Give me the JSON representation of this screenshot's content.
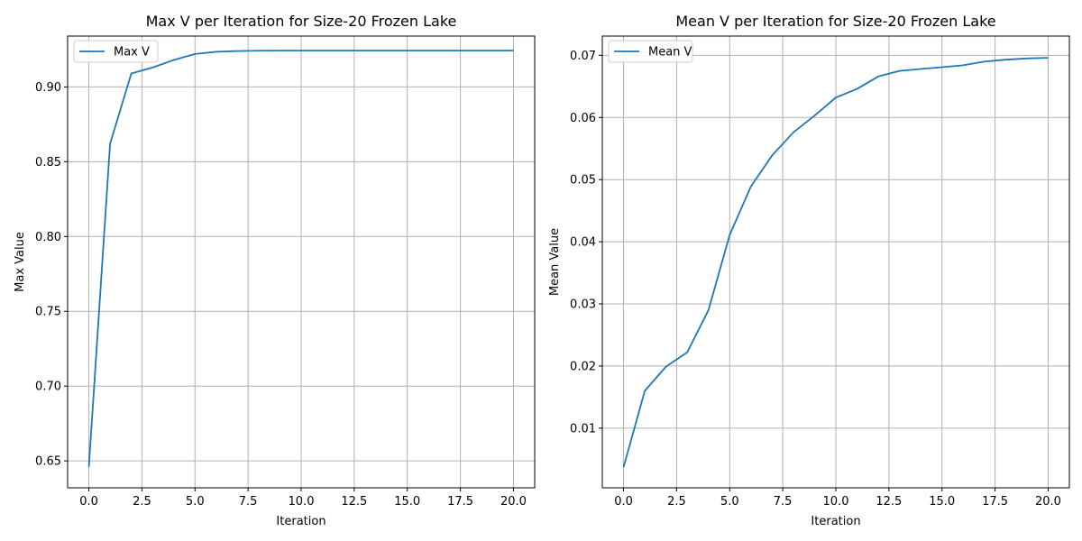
{
  "chart_data": [
    {
      "type": "line",
      "title": "Max V per Iteration for Size-20 Frozen Lake",
      "xlabel": "Iteration",
      "ylabel": "Max Value",
      "xlim": [
        -1,
        21
      ],
      "ylim": [
        0.632,
        0.934
      ],
      "xticks": [
        0.0,
        2.5,
        5.0,
        7.5,
        10.0,
        12.5,
        15.0,
        17.5,
        20.0
      ],
      "xtick_labels": [
        "0.0",
        "2.5",
        "5.0",
        "7.5",
        "10.0",
        "12.5",
        "15.0",
        "17.5",
        "20.0"
      ],
      "yticks": [
        0.65,
        0.7,
        0.75,
        0.8,
        0.85,
        0.9
      ],
      "ytick_labels": [
        "0.65",
        "0.70",
        "0.75",
        "0.80",
        "0.85",
        "0.90"
      ],
      "grid": true,
      "legend": "upper-left",
      "series": [
        {
          "name": "Max V",
          "color": "#1f77b4",
          "x": [
            0,
            1,
            2,
            3,
            4,
            5,
            6,
            7,
            8,
            9,
            10,
            11,
            12,
            13,
            14,
            15,
            16,
            17,
            18,
            19,
            20
          ],
          "y": [
            0.646,
            0.862,
            0.909,
            0.913,
            0.918,
            0.922,
            0.9235,
            0.924,
            0.9242,
            0.9243,
            0.9243,
            0.9243,
            0.9243,
            0.9243,
            0.9243,
            0.9243,
            0.9243,
            0.9243,
            0.9243,
            0.9243,
            0.9243
          ]
        }
      ]
    },
    {
      "type": "line",
      "title": "Mean V per Iteration for Size-20 Frozen Lake",
      "xlabel": "Iteration",
      "ylabel": "Mean Value",
      "xlim": [
        -1,
        21
      ],
      "ylim": [
        0.0004,
        0.0731
      ],
      "xticks": [
        0.0,
        2.5,
        5.0,
        7.5,
        10.0,
        12.5,
        15.0,
        17.5,
        20.0
      ],
      "xtick_labels": [
        "0.0",
        "2.5",
        "5.0",
        "7.5",
        "10.0",
        "12.5",
        "15.0",
        "17.5",
        "20.0"
      ],
      "yticks": [
        0.01,
        0.02,
        0.03,
        0.04,
        0.05,
        0.06,
        0.07
      ],
      "ytick_labels": [
        "0.01",
        "0.02",
        "0.03",
        "0.04",
        "0.05",
        "0.06",
        "0.07"
      ],
      "grid": true,
      "legend": "upper-left",
      "series": [
        {
          "name": "Mean V",
          "color": "#1f77b4",
          "x": [
            0,
            1,
            2,
            3,
            4,
            5,
            6,
            7,
            8,
            9,
            10,
            11,
            12,
            13,
            14,
            15,
            16,
            17,
            18,
            19,
            20
          ],
          "y": [
            0.0037,
            0.016,
            0.0199,
            0.0222,
            0.029,
            0.0411,
            0.0489,
            0.0539,
            0.0576,
            0.0603,
            0.0632,
            0.0646,
            0.0666,
            0.0675,
            0.0678,
            0.0681,
            0.0684,
            0.069,
            0.0693,
            0.0695,
            0.0696
          ]
        }
      ]
    }
  ]
}
